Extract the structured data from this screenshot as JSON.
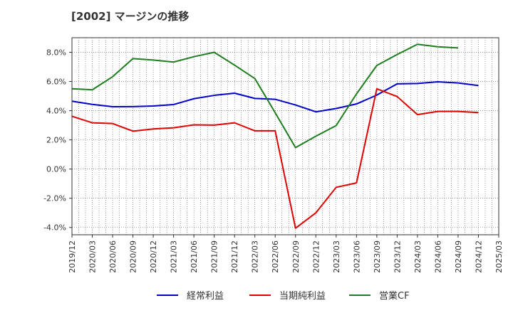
{
  "title": "[2002]  マージンの推移",
  "chart_data": {
    "type": "line",
    "x": [
      "2019/12",
      "2020/03",
      "2020/06",
      "2020/09",
      "2020/12",
      "2021/03",
      "2021/06",
      "2021/09",
      "2021/12",
      "2022/03",
      "2022/06",
      "2022/09",
      "2022/12",
      "2023/03",
      "2023/06",
      "2023/09",
      "2023/12",
      "2024/03",
      "2024/06",
      "2024/09",
      "2024/12",
      "2025/03"
    ],
    "ylim": [
      -4.5,
      9.0
    ],
    "yticks": [
      -4.0,
      -2.0,
      0.0,
      2.0,
      4.0,
      6.0,
      8.0
    ],
    "ytick_labels": [
      "-4.0%",
      "-2.0%",
      "0.0%",
      "2.0%",
      "4.0%",
      "6.0%",
      "8.0%"
    ],
    "grid": true,
    "legend_position": "bottom",
    "series": [
      {
        "name": "経常利益",
        "color": "#0000cc",
        "values": [
          4.65,
          4.43,
          4.27,
          4.28,
          4.32,
          4.42,
          4.82,
          5.05,
          5.2,
          4.84,
          4.78,
          4.39,
          3.92,
          4.15,
          4.46,
          5.07,
          5.84,
          5.86,
          5.98,
          5.9,
          5.72,
          null
        ]
      },
      {
        "name": "当期純利益",
        "color": "#e00000",
        "values": [
          3.62,
          3.17,
          3.12,
          2.6,
          2.75,
          2.83,
          3.03,
          3.01,
          3.17,
          2.62,
          2.62,
          -4.05,
          -3.0,
          -1.25,
          -0.95,
          5.5,
          4.97,
          3.73,
          3.95,
          3.95,
          3.87,
          null
        ]
      },
      {
        "name": "営業CF",
        "color": "#1e7d1e",
        "values": [
          5.5,
          5.43,
          6.33,
          7.57,
          7.47,
          7.33,
          7.7,
          8.0,
          7.12,
          6.2,
          3.86,
          1.47,
          2.25,
          2.98,
          5.15,
          7.1,
          7.85,
          8.55,
          8.38,
          8.3,
          null,
          null
        ]
      }
    ]
  }
}
